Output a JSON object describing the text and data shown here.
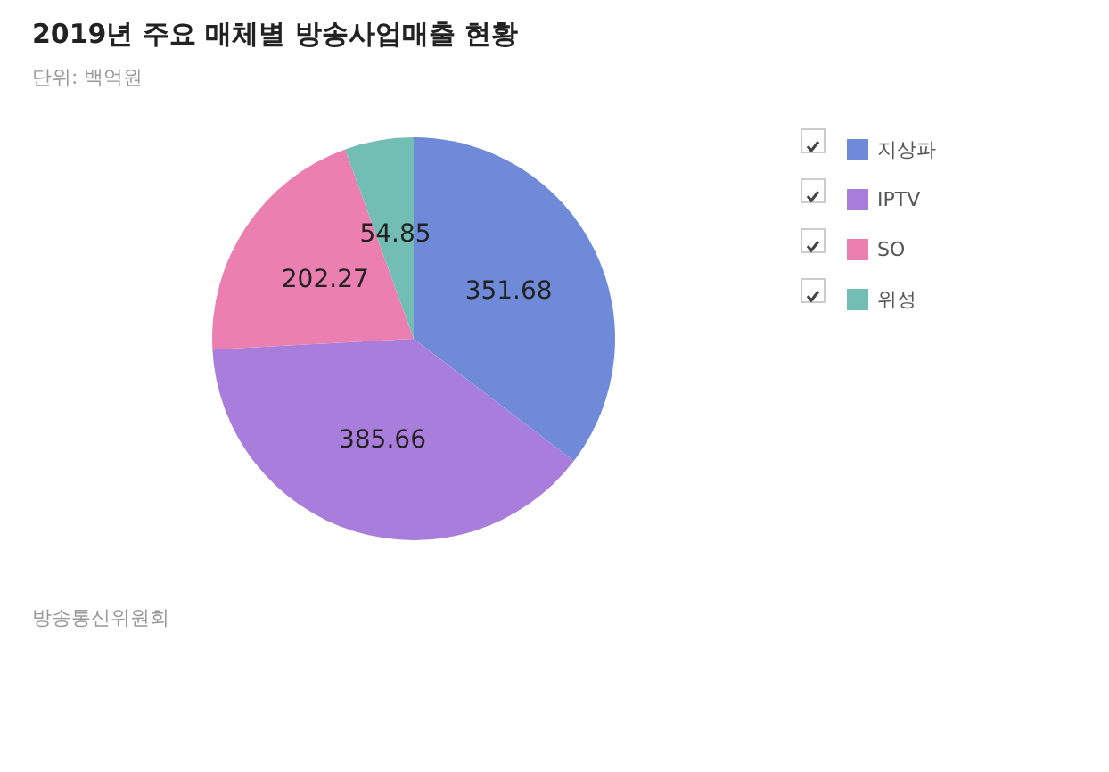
{
  "chart_data": {
    "type": "pie",
    "title": "2019년 주요 매체별 방송사업매출 현황",
    "subtitle": "단위: 백억원",
    "categories": [
      "지상파",
      "IPTV",
      "SO",
      "위성"
    ],
    "values": [
      351.68,
      385.66,
      202.27,
      54.85
    ],
    "colors": [
      "#6f8ad8",
      "#a97ddb",
      "#ea7fb0",
      "#72bdb4"
    ],
    "data_labels": true,
    "legend": "top right",
    "annotations": [
      "방송통신위원회"
    ]
  }
}
